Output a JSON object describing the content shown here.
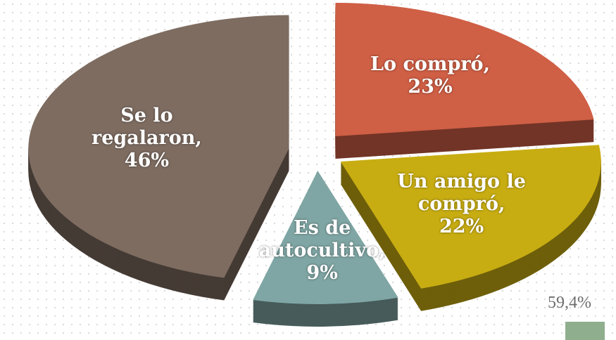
{
  "chart_data": {
    "type": "pie",
    "categories": [
      "Lo compró,",
      "Un amigo le compró,",
      "Es de autocultivo,",
      "Se lo regalaron,"
    ],
    "values": [
      23,
      22,
      9,
      46
    ],
    "value_labels": [
      "23%",
      "22%",
      "9%",
      "46%"
    ],
    "colors": [
      "#cf5f45",
      "#c8ad12",
      "#7fa6a4",
      "#7e6c61"
    ],
    "annotation": "59,4%"
  }
}
